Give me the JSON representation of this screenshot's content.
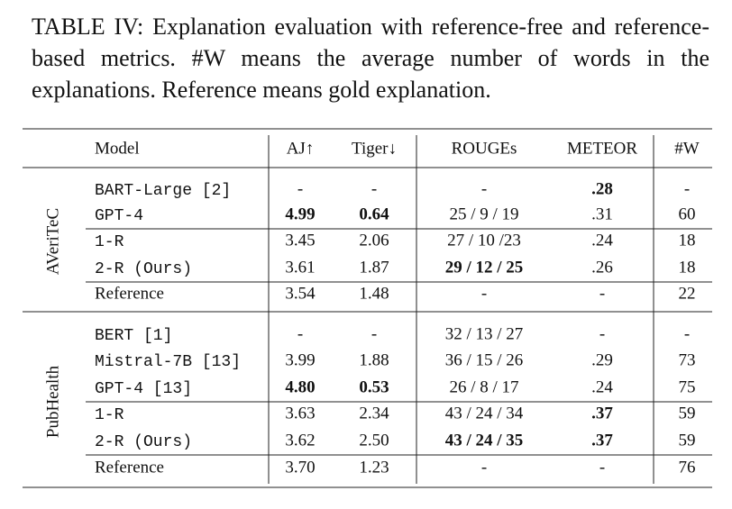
{
  "caption": "TABLE IV: Explanation evaluation with reference-free and reference-based metrics. #W means the average number of words in the explanations. Reference means gold explanation.",
  "table": {
    "header": [
      "Model",
      "AJ↑",
      "Tiger↓",
      "ROUGEs",
      "METEOR",
      "#W"
    ],
    "groups": [
      {
        "name": "AVeriTeC",
        "rows": [
          [
            "BART-Large [2]",
            "-",
            "-",
            "-",
            ".28",
            "-"
          ],
          [
            "GPT-4",
            "4.99",
            "0.64",
            "25 / 9 / 19",
            ".31",
            "60"
          ],
          [
            "1-R",
            "3.45",
            "2.06",
            "27 / 10 /23",
            ".24",
            "18"
          ],
          [
            "2-R (Ours)",
            "3.61",
            "1.87",
            "29 / 12 / 25",
            ".26",
            "18"
          ],
          [
            "Reference",
            "3.54",
            "1.48",
            "-",
            "-",
            "22"
          ]
        ]
      },
      {
        "name": "PubHealth",
        "rows": [
          [
            "BERT [1]",
            "-",
            "-",
            "32 / 13 / 27",
            "-",
            "-"
          ],
          [
            "Mistral-7B [13]",
            "3.99",
            "1.88",
            "36 / 15 / 26",
            ".29",
            "73"
          ],
          [
            "GPT-4 [13]",
            "4.80",
            "0.53",
            "26 / 8 / 17",
            ".24",
            "75"
          ],
          [
            "1-R",
            "3.63",
            "2.34",
            "43 / 24 / 34",
            ".37",
            "59"
          ],
          [
            "2-R (Ours)",
            "3.62",
            "2.50",
            "43 / 24 / 35",
            ".37",
            "59"
          ],
          [
            "Reference",
            "3.70",
            "1.23",
            "-",
            "-",
            "76"
          ]
        ]
      }
    ]
  }
}
